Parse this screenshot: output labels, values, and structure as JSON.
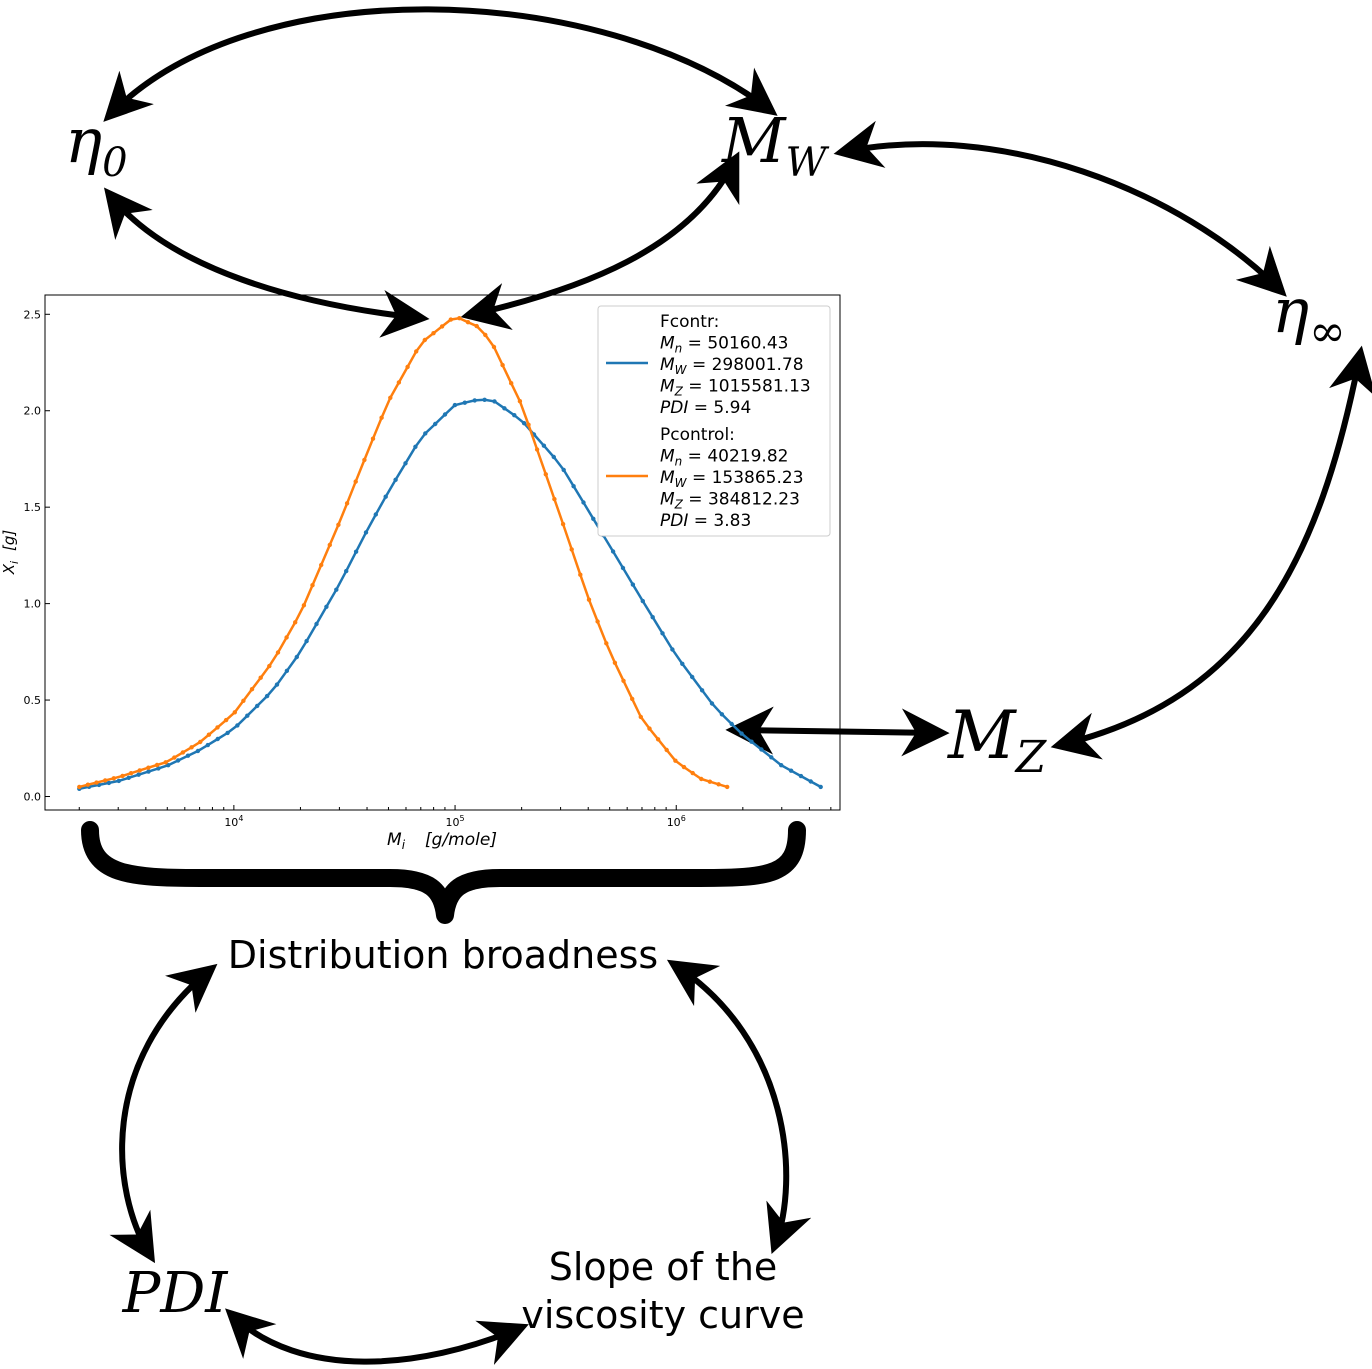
{
  "nodes": {
    "eta0": "η0",
    "mw": "MW",
    "eta_inf": "η∞",
    "mz": "MZ",
    "broadness": "Distribution broadness",
    "pdi": "PDI",
    "slope_line1": "Slope of the",
    "slope_line2": "viscosity curve"
  },
  "colors": {
    "fcontr": "#1f77b4",
    "pcontrol": "#ff7f0e",
    "arrows": "#000000"
  },
  "chart_data": {
    "type": "line",
    "x_scale": "log",
    "xlim": [
      1400,
      5500000
    ],
    "ylim": [
      -0.07,
      2.6
    ],
    "xlabel": "M_i   [g/mole]",
    "ylabel": "X_i   [g]",
    "y_ticks": [
      "0.0",
      "0.5",
      "1.0",
      "1.5",
      "2.0",
      "2.5"
    ],
    "x_ticks": [
      "10^4",
      "10^5",
      "10^6"
    ],
    "legend_position": "upper-right",
    "series": [
      {
        "name": "Fcontr",
        "stats": {
          "Mn": "50160.43",
          "MW": "298001.78",
          "MZ": "1015581.13",
          "PDI": "5.94"
        },
        "x": [
          2000,
          3000,
          5000,
          7000,
          10000,
          15000,
          20000,
          30000,
          40000,
          50000,
          70000,
          100000,
          130000,
          150000,
          200000,
          300000,
          500000,
          700000,
          1000000,
          1500000,
          2000000,
          3000000,
          4500000
        ],
        "y": [
          0.04,
          0.08,
          0.16,
          0.24,
          0.35,
          0.55,
          0.75,
          1.1,
          1.38,
          1.58,
          1.86,
          2.03,
          2.06,
          2.05,
          1.95,
          1.72,
          1.3,
          1.02,
          0.73,
          0.46,
          0.32,
          0.16,
          0.05
        ]
      },
      {
        "name": "Pcontrol",
        "stats": {
          "Mn": "40219.82",
          "MW": "153865.23",
          "MZ": "384812.23",
          "PDI": "3.83"
        },
        "x": [
          2000,
          3000,
          5000,
          7000,
          10000,
          15000,
          20000,
          30000,
          40000,
          50000,
          70000,
          100000,
          130000,
          150000,
          200000,
          300000,
          400000,
          500000,
          700000,
          1000000,
          1300000,
          1700000
        ],
        "y": [
          0.05,
          0.1,
          0.18,
          0.28,
          0.43,
          0.7,
          0.95,
          1.42,
          1.78,
          2.05,
          2.35,
          2.49,
          2.43,
          2.33,
          2.03,
          1.45,
          1.03,
          0.75,
          0.4,
          0.18,
          0.09,
          0.05
        ]
      }
    ]
  }
}
